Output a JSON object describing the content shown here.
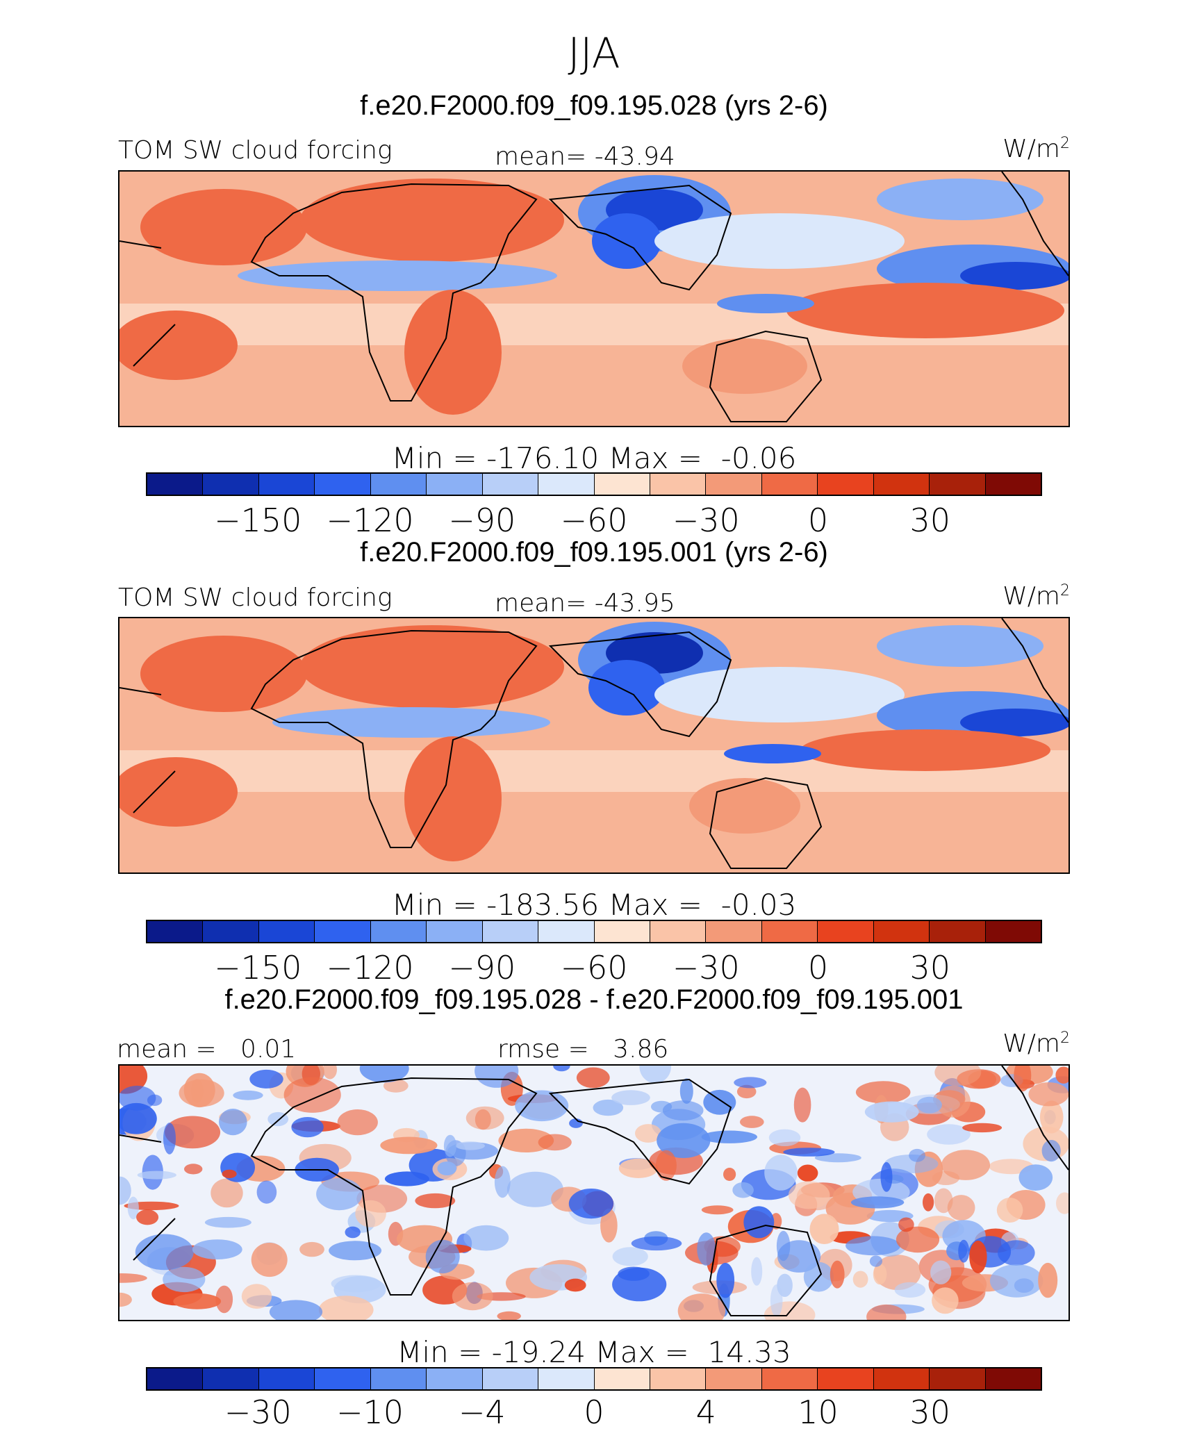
{
  "figure": {
    "season": "JJA",
    "units_label": "W/m",
    "units_sup": "2",
    "variable": "TOM SW cloud forcing"
  },
  "chart_data": [
    {
      "type": "heatmap",
      "title": "f.e20.F2000.f09_f09.195.028 (yrs 2-6)",
      "variable": "TOM SW cloud forcing",
      "units": "W/m2",
      "mean_label": "mean=",
      "mean": "-43.94",
      "min_label": "Min",
      "max_label": "Max",
      "min": "-176.10",
      "max": "-0.06",
      "levels": [
        "-150",
        "-120",
        "-90",
        "-60",
        "-30",
        "0",
        "30"
      ],
      "colors": [
        "#0b1a8a",
        "#0f2fb0",
        "#1a46d6",
        "#2f62ef",
        "#5f8ff0",
        "#8bb0f5",
        "#b8cff8",
        "#dbe8fb",
        "#fde4d2",
        "#fac4a8",
        "#f39a78",
        "#ef6a45",
        "#e8431f",
        "#d1330f",
        "#a8210a",
        "#7f0a05"
      ]
    },
    {
      "type": "heatmap",
      "title": "f.e20.F2000.f09_f09.195.001 (yrs 2-6)",
      "variable": "TOM SW cloud forcing",
      "units": "W/m2",
      "mean_label": "mean=",
      "mean": "-43.95",
      "min_label": "Min",
      "max_label": "Max",
      "min": "-183.56",
      "max": "-0.03",
      "levels": [
        "-150",
        "-120",
        "-90",
        "-60",
        "-30",
        "0",
        "30"
      ],
      "colors": [
        "#0b1a8a",
        "#0f2fb0",
        "#1a46d6",
        "#2f62ef",
        "#5f8ff0",
        "#8bb0f5",
        "#b8cff8",
        "#dbe8fb",
        "#fde4d2",
        "#fac4a8",
        "#f39a78",
        "#ef6a45",
        "#e8431f",
        "#d1330f",
        "#a8210a",
        "#7f0a05"
      ]
    },
    {
      "type": "heatmap",
      "title": "f.e20.F2000.f09_f09.195.028 - f.e20.F2000.f09_f09.195.001",
      "units": "W/m2",
      "mean_label": "mean =",
      "mean": "0.01",
      "rmse_label": "rmse =",
      "rmse": "3.86",
      "min_label": "Min",
      "max_label": "Max",
      "min": "-19.24",
      "max": "14.33",
      "levels": [
        "-30",
        "-10",
        "-4",
        "0",
        "4",
        "10",
        "30"
      ],
      "colors": [
        "#0b1a8a",
        "#0f2fb0",
        "#1a46d6",
        "#2f62ef",
        "#5f8ff0",
        "#8bb0f5",
        "#b8cff8",
        "#dbe8fb",
        "#fde4d2",
        "#fac4a8",
        "#f39a78",
        "#ef6a45",
        "#e8431f",
        "#d1330f",
        "#a8210a",
        "#7f0a05"
      ]
    }
  ]
}
